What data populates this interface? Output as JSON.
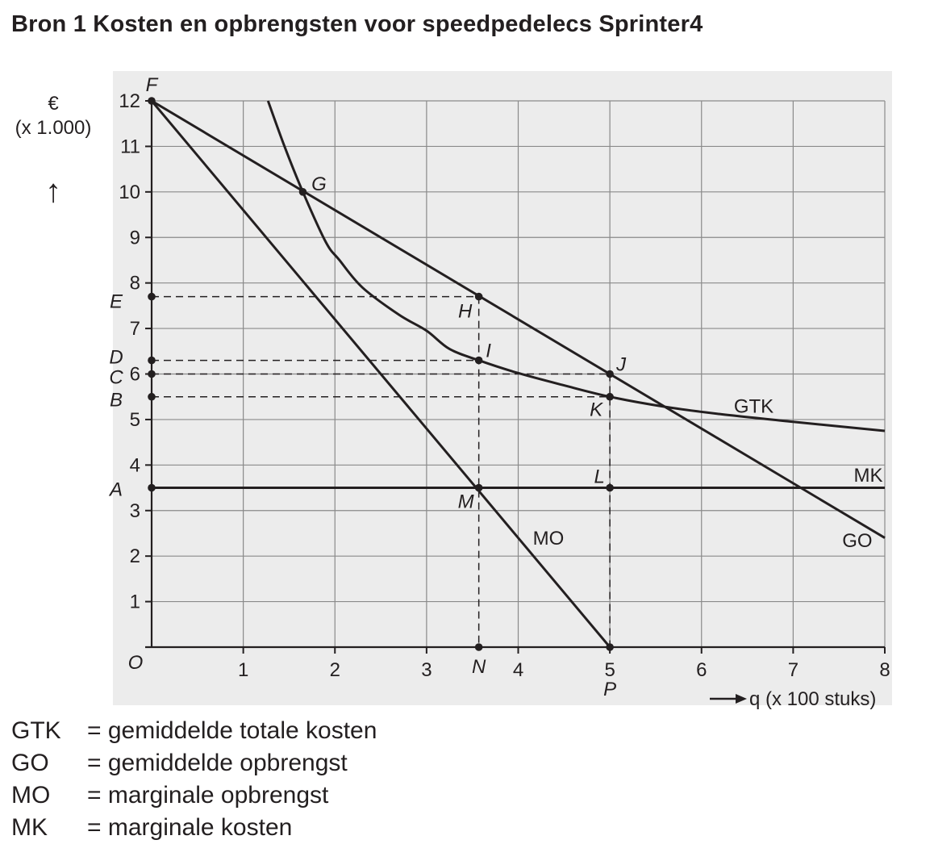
{
  "title": "Bron 1  Kosten en opbrengsten voor speedpedelecs Sprinter4",
  "chart_data": {
    "type": "line",
    "title": "Kosten en opbrengsten voor speedpedelecs Sprinter4",
    "ylabel_unit": "€",
    "ylabel_scale": "(x 1.000)",
    "ylabel_arrow": "↑",
    "xlabel": "q (x 100 stuks)",
    "xlim": [
      0,
      8
    ],
    "ylim": [
      0,
      12
    ],
    "x_ticks": [
      "1",
      "2",
      "3",
      "4",
      "5",
      "6",
      "7",
      "8"
    ],
    "y_ticks": [
      "1",
      "2",
      "3",
      "4",
      "5",
      "6",
      "7",
      "8",
      "9",
      "10",
      "11",
      "12"
    ],
    "origin_label": "O",
    "grid": true,
    "series": [
      {
        "name": "GO",
        "label": "GO",
        "points": [
          [
            0,
            12
          ],
          [
            8,
            2.4
          ]
        ]
      },
      {
        "name": "MO",
        "label": "MO",
        "points": [
          [
            0,
            12
          ],
          [
            5,
            0
          ]
        ]
      },
      {
        "name": "MK",
        "label": "MK",
        "points": [
          [
            0,
            3.5
          ],
          [
            8,
            3.5
          ]
        ]
      },
      {
        "name": "GTK",
        "label": "GTK",
        "points": [
          [
            1.27,
            12
          ],
          [
            1.45,
            11
          ],
          [
            1.65,
            10
          ],
          [
            1.9,
            8.9
          ],
          [
            2.05,
            8.5
          ],
          [
            2.3,
            7.9
          ],
          [
            2.7,
            7.3
          ],
          [
            3.0,
            6.95
          ],
          [
            3.25,
            6.55
          ],
          [
            3.57,
            6.3
          ],
          [
            4.0,
            6.02
          ],
          [
            4.5,
            5.75
          ],
          [
            5.0,
            5.5
          ],
          [
            5.6,
            5.28
          ],
          [
            6.2,
            5.12
          ],
          [
            7.0,
            4.95
          ],
          [
            8.0,
            4.75
          ]
        ]
      }
    ],
    "points": [
      {
        "label": "F",
        "x": 0,
        "y": 12
      },
      {
        "label": "G",
        "x": 1.65,
        "y": 10
      },
      {
        "label": "H",
        "x": 3.57,
        "y": 7.7
      },
      {
        "label": "I",
        "x": 3.57,
        "y": 6.3
      },
      {
        "label": "J",
        "x": 5,
        "y": 6
      },
      {
        "label": "K",
        "x": 5,
        "y": 5.5
      },
      {
        "label": "L",
        "x": 5,
        "y": 3.5
      },
      {
        "label": "M",
        "x": 3.57,
        "y": 3.5
      },
      {
        "label": "N",
        "x": 3.57,
        "y": 0
      },
      {
        "label": "P",
        "x": 5,
        "y": 0
      },
      {
        "label": "A",
        "x": 0,
        "y": 3.5
      },
      {
        "label": "B",
        "x": 0,
        "y": 5.5
      },
      {
        "label": "C",
        "x": 0,
        "y": 6
      },
      {
        "label": "D",
        "x": 0,
        "y": 6.3
      },
      {
        "label": "E",
        "x": 0,
        "y": 7.7
      }
    ],
    "guides": [
      {
        "from": [
          0,
          7.7
        ],
        "to": [
          3.57,
          7.7
        ]
      },
      {
        "from": [
          0,
          6.3
        ],
        "to": [
          3.57,
          6.3
        ]
      },
      {
        "from": [
          0,
          6
        ],
        "to": [
          5,
          6
        ]
      },
      {
        "from": [
          0,
          5.5
        ],
        "to": [
          5,
          5.5
        ]
      },
      {
        "from": [
          3.57,
          7.7
        ],
        "to": [
          3.57,
          0
        ]
      },
      {
        "from": [
          5,
          6
        ],
        "to": [
          5,
          0
        ]
      }
    ]
  },
  "legend": [
    {
      "abbr": "GTK",
      "text": "= gemiddelde totale kosten"
    },
    {
      "abbr": "GO",
      "text": "= gemiddelde opbrengst"
    },
    {
      "abbr": "MO",
      "text": "= marginale opbrengst"
    },
    {
      "abbr": "MK",
      "text": "= marginale kosten"
    }
  ]
}
